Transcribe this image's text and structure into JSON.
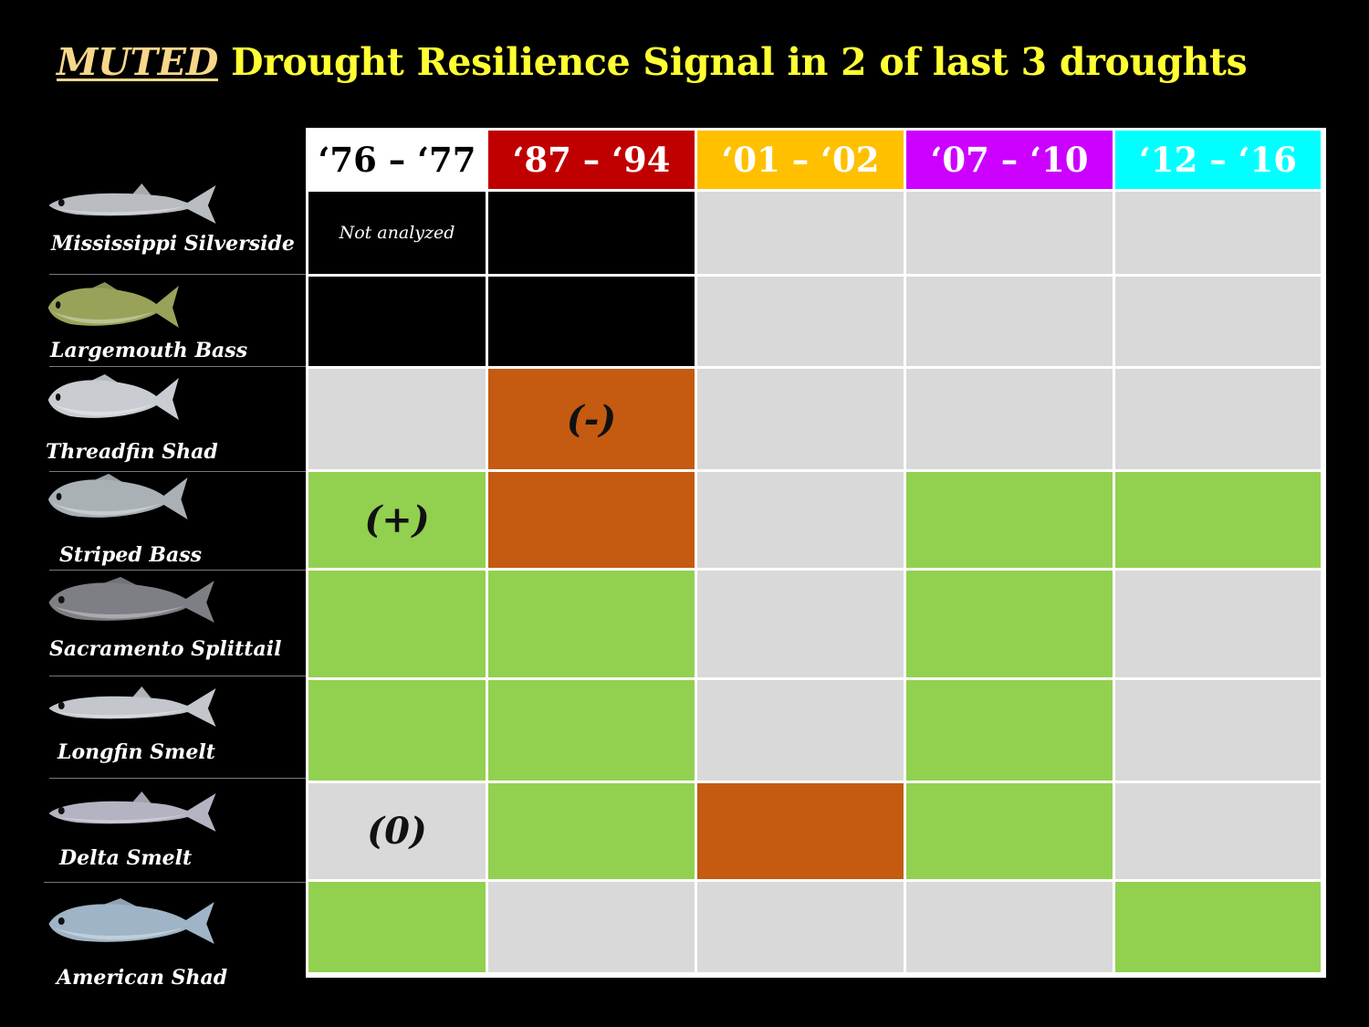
{
  "title": {
    "emphasis": "MUTED",
    "rest": " Drought Resilience Signal in 2 of last 3 droughts"
  },
  "colors": {
    "green": "#92d050",
    "gray": "#d9d9d9",
    "orange": "#c55a11",
    "black": "#000000"
  },
  "chart_data": {
    "type": "table",
    "columns": [
      {
        "label": "‘76 – ‘77",
        "bg": "#ffffff",
        "fg": "#000000"
      },
      {
        "label": "‘87 – ‘94",
        "bg": "#c00000",
        "fg": "#ffffff"
      },
      {
        "label": "‘01 – ‘02",
        "bg": "#ffc000",
        "fg": "#ffffff"
      },
      {
        "label": "‘07 – ‘10",
        "bg": "#cc00ff",
        "fg": "#ffffff"
      },
      {
        "label": "‘12 – ‘16",
        "bg": "#00ffff",
        "fg": "#ffffff"
      }
    ],
    "rows": [
      {
        "species": "Mississippi Silverside",
        "fish_color": "#b9bcc0",
        "cells": [
          "none",
          "none",
          "gray",
          "gray",
          "gray"
        ]
      },
      {
        "species": "Largemouth Bass",
        "fish_color": "#9aa25a",
        "cells": [
          "none",
          "none",
          "gray",
          "gray",
          "gray"
        ]
      },
      {
        "species": "Threadfin Shad",
        "fish_color": "#c9cdd2",
        "cells": [
          "gray",
          "orange",
          "gray",
          "gray",
          "gray"
        ]
      },
      {
        "species": "Striped Bass",
        "fish_color": "#a9b1b5",
        "cells": [
          "green",
          "orange",
          "gray",
          "green",
          "green"
        ]
      },
      {
        "species": "Sacramento Splittail",
        "fish_color": "#7e7f85",
        "cells": [
          "green",
          "green",
          "gray",
          "green",
          "gray"
        ]
      },
      {
        "species": "Longfin Smelt",
        "fish_color": "#c3c7cc",
        "cells": [
          "green",
          "green",
          "gray",
          "green",
          "gray"
        ]
      },
      {
        "species": "Delta Smelt",
        "fish_color": "#b3b3c2",
        "cells": [
          "gray",
          "green",
          "orange",
          "green",
          "gray"
        ]
      },
      {
        "species": "American Shad",
        "fish_color": "#9fb4c6",
        "cells": [
          "green",
          "gray",
          "gray",
          "gray",
          "green"
        ]
      }
    ],
    "annotations": [
      {
        "row": 0,
        "col": 0,
        "text": "Not analyzed",
        "style": "note"
      },
      {
        "row": 2,
        "col": 1,
        "text": "(-)",
        "style": "signal"
      },
      {
        "row": 3,
        "col": 0,
        "text": "(+)",
        "style": "signal"
      },
      {
        "row": 6,
        "col": 0,
        "text": "(0)",
        "style": "signal"
      }
    ]
  }
}
